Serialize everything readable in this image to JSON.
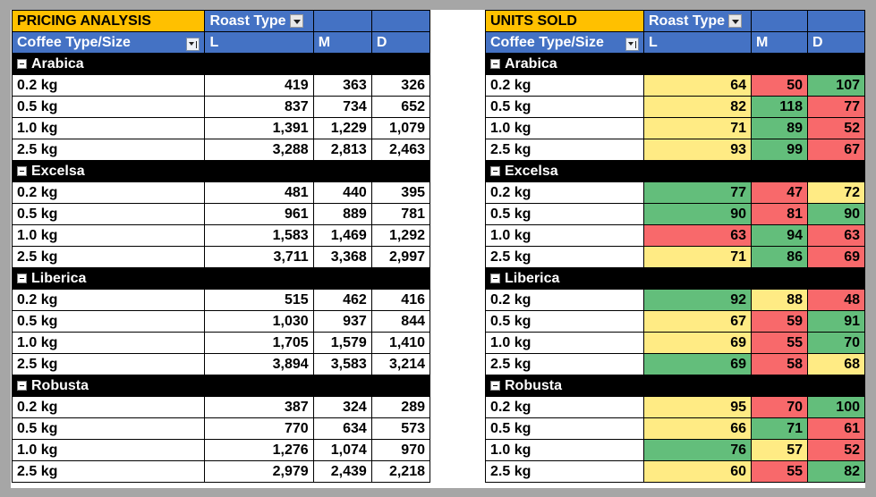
{
  "tables": [
    {
      "title": "PRICING ANALYSIS",
      "col_filter_label": "Roast Type",
      "row_filter_label": "Coffee Type/Size",
      "columns": [
        "L",
        "M",
        "D"
      ],
      "groups": [
        {
          "name": "Arabica",
          "rows": [
            {
              "size": "0.2 kg",
              "values": [
                "419",
                "363",
                "326"
              ]
            },
            {
              "size": "0.5 kg",
              "values": [
                "837",
                "734",
                "652"
              ]
            },
            {
              "size": "1.0 kg",
              "values": [
                "1,391",
                "1,229",
                "1,079"
              ]
            },
            {
              "size": "2.5 kg",
              "values": [
                "3,288",
                "2,813",
                "2,463"
              ]
            }
          ]
        },
        {
          "name": "Excelsa",
          "rows": [
            {
              "size": "0.2 kg",
              "values": [
                "481",
                "440",
                "395"
              ]
            },
            {
              "size": "0.5 kg",
              "values": [
                "961",
                "889",
                "781"
              ]
            },
            {
              "size": "1.0 kg",
              "values": [
                "1,583",
                "1,469",
                "1,292"
              ]
            },
            {
              "size": "2.5 kg",
              "values": [
                "3,711",
                "3,368",
                "2,997"
              ]
            }
          ]
        },
        {
          "name": "Liberica",
          "rows": [
            {
              "size": "0.2 kg",
              "values": [
                "515",
                "462",
                "416"
              ]
            },
            {
              "size": "0.5 kg",
              "values": [
                "1,030",
                "937",
                "844"
              ]
            },
            {
              "size": "1.0 kg",
              "values": [
                "1,705",
                "1,579",
                "1,410"
              ]
            },
            {
              "size": "2.5 kg",
              "values": [
                "3,894",
                "3,583",
                "3,214"
              ]
            }
          ]
        },
        {
          "name": "Robusta",
          "rows": [
            {
              "size": "0.2 kg",
              "values": [
                "387",
                "324",
                "289"
              ]
            },
            {
              "size": "0.5 kg",
              "values": [
                "770",
                "634",
                "573"
              ]
            },
            {
              "size": "1.0 kg",
              "values": [
                "1,276",
                "1,074",
                "970"
              ]
            },
            {
              "size": "2.5 kg",
              "values": [
                "2,979",
                "2,439",
                "2,218"
              ]
            }
          ]
        }
      ]
    },
    {
      "title": "UNITS SOLD",
      "col_filter_label": "Roast Type",
      "row_filter_label": "Coffee Type/Size",
      "columns": [
        "L",
        "M",
        "D"
      ],
      "groups": [
        {
          "name": "Arabica",
          "rows": [
            {
              "size": "0.2 kg",
              "values": [
                "64",
                "50",
                "107"
              ],
              "colors": [
                "y",
                "r",
                "g"
              ]
            },
            {
              "size": "0.5 kg",
              "values": [
                "82",
                "118",
                "77"
              ],
              "colors": [
                "y",
                "g",
                "r"
              ]
            },
            {
              "size": "1.0 kg",
              "values": [
                "71",
                "89",
                "52"
              ],
              "colors": [
                "y",
                "g",
                "r"
              ]
            },
            {
              "size": "2.5 kg",
              "values": [
                "93",
                "99",
                "67"
              ],
              "colors": [
                "y",
                "g",
                "r"
              ]
            }
          ]
        },
        {
          "name": "Excelsa",
          "rows": [
            {
              "size": "0.2 kg",
              "values": [
                "77",
                "47",
                "72"
              ],
              "colors": [
                "g",
                "r",
                "y"
              ]
            },
            {
              "size": "0.5 kg",
              "values": [
                "90",
                "81",
                "90"
              ],
              "colors": [
                "g",
                "r",
                "g"
              ]
            },
            {
              "size": "1.0 kg",
              "values": [
                "63",
                "94",
                "63"
              ],
              "colors": [
                "r",
                "g",
                "r"
              ]
            },
            {
              "size": "2.5 kg",
              "values": [
                "71",
                "86",
                "69"
              ],
              "colors": [
                "y",
                "g",
                "r"
              ]
            }
          ]
        },
        {
          "name": "Liberica",
          "rows": [
            {
              "size": "0.2 kg",
              "values": [
                "92",
                "88",
                "48"
              ],
              "colors": [
                "g",
                "y",
                "r"
              ]
            },
            {
              "size": "0.5 kg",
              "values": [
                "67",
                "59",
                "91"
              ],
              "colors": [
                "y",
                "r",
                "g"
              ]
            },
            {
              "size": "1.0 kg",
              "values": [
                "69",
                "55",
                "70"
              ],
              "colors": [
                "y",
                "r",
                "g"
              ]
            },
            {
              "size": "2.5 kg",
              "values": [
                "69",
                "58",
                "68"
              ],
              "colors": [
                "g",
                "r",
                "y"
              ]
            }
          ]
        },
        {
          "name": "Robusta",
          "rows": [
            {
              "size": "0.2 kg",
              "values": [
                "95",
                "70",
                "100"
              ],
              "colors": [
                "y",
                "r",
                "g"
              ]
            },
            {
              "size": "0.5 kg",
              "values": [
                "66",
                "71",
                "61"
              ],
              "colors": [
                "y",
                "g",
                "r"
              ]
            },
            {
              "size": "1.0 kg",
              "values": [
                "76",
                "57",
                "52"
              ],
              "colors": [
                "g",
                "y",
                "r"
              ]
            },
            {
              "size": "2.5 kg",
              "values": [
                "60",
                "55",
                "82"
              ],
              "colors": [
                "y",
                "r",
                "g"
              ]
            }
          ]
        }
      ]
    }
  ],
  "colors": {
    "title_bg": "#ffc000",
    "header_bg": "#4472c4",
    "group_bg": "#000000",
    "high": "#63be7b",
    "mid": "#ffeb84",
    "low": "#f8696b"
  }
}
